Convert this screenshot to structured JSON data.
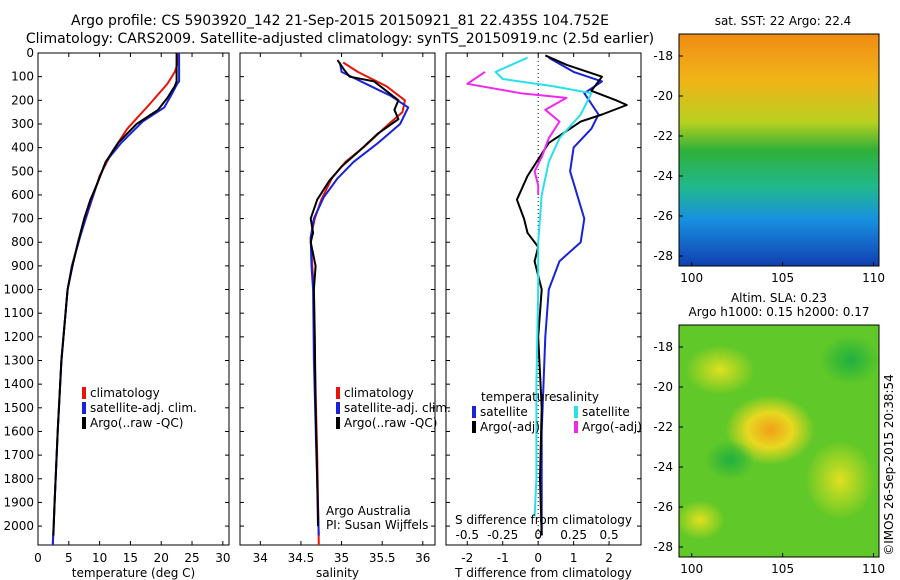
{
  "title_line1": "Argo profile: CS 5903920_142 21-Sep-2015 20150921_81 22.435S 104.752E",
  "title_line2": "Climatology: CARS2009. Satellite-adjusted climatology: synTS_20150919.nc (2.5d earlier)",
  "footer_text": "©IMOS 26-Sep-2015 20:38:54",
  "colors": {
    "climatology": "#e8140c",
    "satellite": "#1822d8",
    "argo": "#000000",
    "sat_salinity": "#28e0e8",
    "argo_salinity_adj": "#f028f0"
  },
  "chart_data": [
    {
      "id": "temperature",
      "type": "line",
      "xlabel": "temperature (deg C)",
      "ylabel": "",
      "xlim": [
        0,
        31
      ],
      "ylim": [
        2080,
        0
      ],
      "xticks": [
        0,
        5,
        10,
        15,
        20,
        25,
        30
      ],
      "yticks": [
        0,
        100,
        200,
        300,
        400,
        500,
        600,
        700,
        800,
        900,
        1000,
        1100,
        1200,
        1300,
        1400,
        1500,
        1600,
        1700,
        1800,
        1900,
        2000
      ],
      "legend": [
        "climatology",
        "satellite-adj. clim.",
        "Argo(..raw -QC)"
      ],
      "series": [
        {
          "name": "climatology",
          "color": "#e8140c",
          "points": [
            [
              22.6,
              0
            ],
            [
              22.6,
              50
            ],
            [
              22.2,
              80
            ],
            [
              21,
              130
            ],
            [
              18,
              220
            ],
            [
              14.5,
              320
            ],
            [
              12,
              420
            ],
            [
              10,
              520
            ],
            [
              8.5,
              640
            ],
            [
              7,
              760
            ],
            [
              5.5,
              900
            ],
            [
              4.8,
              1000
            ],
            [
              3.8,
              1300
            ],
            [
              3.2,
              1600
            ],
            [
              2.7,
              1900
            ],
            [
              2.4,
              2080
            ]
          ]
        },
        {
          "name": "satellite-adj. clim.",
          "color": "#1822d8",
          "points": [
            [
              22.9,
              0
            ],
            [
              22.9,
              120
            ],
            [
              22.6,
              130
            ],
            [
              21.8,
              170
            ],
            [
              20.5,
              230
            ],
            [
              17,
              290
            ],
            [
              13.5,
              380
            ],
            [
              11,
              460
            ],
            [
              9.5,
              560
            ],
            [
              8.2,
              660
            ],
            [
              6.8,
              780
            ],
            [
              5.5,
              900
            ],
            [
              4.8,
              1000
            ],
            [
              3.8,
              1300
            ],
            [
              3.2,
              1600
            ],
            [
              2.7,
              1900
            ],
            [
              2.4,
              2080
            ]
          ]
        },
        {
          "name": "Argo(..raw -QC)",
          "color": "#000000",
          "points": [
            [
              22.5,
              0
            ],
            [
              22.5,
              120
            ],
            [
              22.2,
              140
            ],
            [
              21,
              190
            ],
            [
              19.5,
              240
            ],
            [
              16,
              300
            ],
            [
              13,
              380
            ],
            [
              11,
              460
            ],
            [
              9.5,
              560
            ],
            [
              8.5,
              620
            ],
            [
              7.5,
              700
            ],
            [
              6.5,
              800
            ],
            [
              5.6,
              900
            ],
            [
              4.8,
              1000
            ],
            [
              3.8,
              1300
            ],
            [
              3.2,
              1600
            ],
            [
              2.7,
              1900
            ],
            [
              2.5,
              2040
            ]
          ]
        }
      ]
    },
    {
      "id": "salinity",
      "type": "line",
      "xlabel": "salinity",
      "ylabel": "",
      "xlim": [
        33.75,
        36.15
      ],
      "ylim": [
        2080,
        0
      ],
      "xticks": [
        34,
        34.5,
        35,
        35.5,
        36
      ],
      "yticks": [
        0,
        100,
        200,
        300,
        400,
        500,
        600,
        700,
        800,
        900,
        1000,
        1100,
        1200,
        1300,
        1400,
        1500,
        1600,
        1700,
        1800,
        1900,
        2000
      ],
      "legend": [
        "climatology",
        "satellite-adj. clim.",
        "Argo(..raw -QC)"
      ],
      "annotation_lines": [
        "Argo Australia",
        "PI: Susan Wijffels"
      ],
      "series": [
        {
          "name": "climatology",
          "color": "#e8140c",
          "points": [
            [
              35.02,
              40
            ],
            [
              35.2,
              80
            ],
            [
              35.55,
              140
            ],
            [
              35.78,
              200
            ],
            [
              35.75,
              250
            ],
            [
              35.55,
              310
            ],
            [
              35.3,
              390
            ],
            [
              35.05,
              460
            ],
            [
              34.88,
              530
            ],
            [
              34.75,
              620
            ],
            [
              34.67,
              700
            ],
            [
              34.62,
              780
            ],
            [
              34.64,
              900
            ],
            [
              34.66,
              1000
            ],
            [
              34.67,
              1300
            ],
            [
              34.7,
              1700
            ],
            [
              34.72,
              2080
            ]
          ]
        },
        {
          "name": "satellite-adj. clim.",
          "color": "#1822d8",
          "points": [
            [
              34.98,
              40
            ],
            [
              35.0,
              80
            ],
            [
              35.3,
              130
            ],
            [
              35.6,
              180
            ],
            [
              35.82,
              230
            ],
            [
              35.72,
              300
            ],
            [
              35.45,
              380
            ],
            [
              35.15,
              460
            ],
            [
              34.95,
              530
            ],
            [
              34.78,
              610
            ],
            [
              34.66,
              700
            ],
            [
              34.62,
              780
            ],
            [
              34.63,
              900
            ],
            [
              34.65,
              1000
            ],
            [
              34.66,
              1300
            ],
            [
              34.69,
              1700
            ],
            [
              34.72,
              2040
            ]
          ]
        },
        {
          "name": "Argo(..raw -QC)",
          "color": "#000000",
          "points": [
            [
              34.95,
              30
            ],
            [
              35.03,
              70
            ],
            [
              35.1,
              100
            ],
            [
              35.4,
              120
            ],
            [
              35.55,
              160
            ],
            [
              35.7,
              200
            ],
            [
              35.65,
              240
            ],
            [
              35.7,
              280
            ],
            [
              35.45,
              340
            ],
            [
              35.2,
              420
            ],
            [
              35.0,
              480
            ],
            [
              34.85,
              540
            ],
            [
              34.7,
              620
            ],
            [
              34.62,
              700
            ],
            [
              34.65,
              760
            ],
            [
              34.62,
              800
            ],
            [
              34.68,
              900
            ],
            [
              34.66,
              1000
            ],
            [
              34.67,
              1200
            ],
            [
              34.68,
              1500
            ],
            [
              34.7,
              1800
            ],
            [
              34.71,
              2000
            ]
          ]
        }
      ]
    },
    {
      "id": "difference",
      "type": "line",
      "xlabel": "T difference from climatology",
      "top_label": "S difference from climatology",
      "xlim": [
        -2.6,
        2.9
      ],
      "ylim": [
        2080,
        0
      ],
      "xticks": [
        -2,
        -1,
        0,
        1,
        2
      ],
      "top_ticks": [
        -0.5,
        -0.25,
        0,
        0.25,
        0.5
      ],
      "top_ticklabels": [
        "-0.5",
        "-0.25",
        "0",
        "0.25",
        "0.5"
      ],
      "yticks": [
        0,
        100,
        200,
        300,
        400,
        500,
        600,
        700,
        800,
        900,
        1000,
        1100,
        1200,
        1300,
        1400,
        1500,
        1600,
        1700,
        1800,
        1900,
        2000
      ],
      "legend_temperature_title": "temperature",
      "legend_salinity_title": "salinity",
      "legend_temperature": [
        "satellite",
        "Argo(-adj)"
      ],
      "legend_salinity": [
        "satellite",
        "Argo(-adj)"
      ],
      "series": [
        {
          "name": "satellite",
          "group": "temperature",
          "color": "#1822d8",
          "points": [
            [
              0.3,
              20
            ],
            [
              1.0,
              80
            ],
            [
              1.8,
              120
            ],
            [
              1.3,
              170
            ],
            [
              1.7,
              260
            ],
            [
              1.5,
              320
            ],
            [
              1.0,
              400
            ],
            [
              0.9,
              500
            ],
            [
              1.1,
              600
            ],
            [
              1.3,
              700
            ],
            [
              1.2,
              800
            ],
            [
              0.6,
              880
            ],
            [
              0.3,
              1000
            ],
            [
              0.2,
              1200
            ],
            [
              0.1,
              1600
            ],
            [
              0.1,
              2040
            ]
          ]
        },
        {
          "name": "Argo(-adj)",
          "group": "temperature",
          "color": "#000000",
          "points": [
            [
              0.2,
              10
            ],
            [
              0.8,
              50
            ],
            [
              1.4,
              80
            ],
            [
              1.8,
              100
            ],
            [
              1.5,
              160
            ],
            [
              2.2,
              200
            ],
            [
              2.5,
              220
            ],
            [
              1.8,
              260
            ],
            [
              1.2,
              290
            ],
            [
              0.8,
              330
            ],
            [
              0.3,
              380
            ],
            [
              0.0,
              450
            ],
            [
              -0.3,
              520
            ],
            [
              -0.6,
              620
            ],
            [
              -0.4,
              700
            ],
            [
              -0.3,
              760
            ],
            [
              0.0,
              820
            ],
            [
              -0.1,
              880
            ],
            [
              0.1,
              1000
            ],
            [
              0.0,
              1200
            ],
            [
              0.1,
              1500
            ],
            [
              0.05,
              1800
            ],
            [
              0.1,
              2040
            ]
          ]
        },
        {
          "name": "satellite",
          "group": "salinity",
          "color": "#28e0e8",
          "points": [
            [
              -0.3,
              20
            ],
            [
              -1.2,
              80
            ],
            [
              -1.0,
              110
            ],
            [
              0.4,
              140
            ],
            [
              1.5,
              170
            ],
            [
              1.2,
              260
            ],
            [
              0.6,
              360
            ],
            [
              0.3,
              460
            ],
            [
              0.1,
              600
            ],
            [
              0.0,
              800
            ],
            [
              0.0,
              1000
            ],
            [
              -0.05,
              1400
            ],
            [
              -0.05,
              1800
            ],
            [
              -0.1,
              1960
            ]
          ]
        },
        {
          "name": "Argo(-adj)",
          "group": "salinity",
          "color": "#f028f0",
          "points": [
            [
              -1.5,
              80
            ],
            [
              -2.0,
              130
            ],
            [
              -0.5,
              170
            ],
            [
              0.8,
              190
            ],
            [
              0.2,
              240
            ],
            [
              0.6,
              290
            ],
            [
              0.3,
              360
            ],
            [
              0.1,
              440
            ],
            [
              -0.1,
              500
            ],
            [
              0.0,
              560
            ],
            [
              0.0,
              600
            ]
          ]
        }
      ]
    }
  ],
  "maps": [
    {
      "id": "sst-map",
      "title": "sat. SST: 22 Argo: 22.4",
      "xticks": [
        100,
        105,
        110
      ],
      "yticks": [
        -18,
        -20,
        -22,
        -24,
        -26,
        -28
      ]
    },
    {
      "id": "sla-map",
      "title_line1": "Altim. SLA: 0.23",
      "title_line2": "Argo h1000: 0.15 h2000: 0.17",
      "xticks": [
        100,
        105,
        110
      ],
      "yticks": [
        -18,
        -20,
        -22,
        -24,
        -26,
        -28
      ]
    }
  ]
}
